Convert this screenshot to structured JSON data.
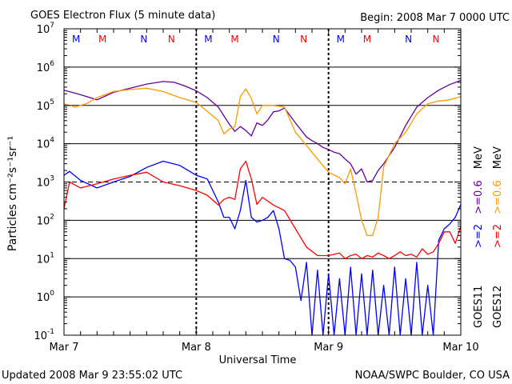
{
  "chart_data": {
    "type": "line",
    "title": "GOES Electron Flux (5 minute data)",
    "begin_text": "Begin: 2008 Mar 7 0000 UTC",
    "xlabel": "Universal Time",
    "ylabel": "Particles cm⁻²s⁻¹sr⁻¹",
    "yscale": "log",
    "ylim_exp": [
      -1,
      7
    ],
    "y_ticks": [
      {
        "exp": -1,
        "label": "10",
        "sup": "-1"
      },
      {
        "exp": 0,
        "label": "10",
        "sup": "0"
      },
      {
        "exp": 1,
        "label": "10",
        "sup": "1"
      },
      {
        "exp": 2,
        "label": "10",
        "sup": "2"
      },
      {
        "exp": 3,
        "label": "10",
        "sup": "3"
      },
      {
        "exp": 4,
        "label": "10",
        "sup": "4"
      },
      {
        "exp": 5,
        "label": "10",
        "sup": "5"
      },
      {
        "exp": 6,
        "label": "10",
        "sup": "6"
      },
      {
        "exp": 7,
        "label": "10",
        "sup": "7"
      }
    ],
    "xlim_hours": [
      0,
      72
    ],
    "x_ticks": [
      {
        "hour": 0,
        "label": "Mar 7"
      },
      {
        "hour": 24,
        "label": "Mar 8"
      },
      {
        "hour": 48,
        "label": "Mar 9"
      },
      {
        "hour": 72,
        "label": "Mar 10"
      }
    ],
    "threshold_exp": 3,
    "grid": "horizontal decades",
    "mn_markers": [
      {
        "hour": 2.2,
        "text": "M",
        "color": "#0000ff"
      },
      {
        "hour": 7.0,
        "text": "M",
        "color": "#ff0000"
      },
      {
        "hour": 14.5,
        "text": "N",
        "color": "#0000ff"
      },
      {
        "hour": 19.5,
        "text": "N",
        "color": "#ff0000"
      },
      {
        "hour": 26.2,
        "text": "M",
        "color": "#0000ff"
      },
      {
        "hour": 31.0,
        "text": "M",
        "color": "#ff0000"
      },
      {
        "hour": 38.5,
        "text": "N",
        "color": "#0000ff"
      },
      {
        "hour": 43.5,
        "text": "N",
        "color": "#ff0000"
      },
      {
        "hour": 50.2,
        "text": "M",
        "color": "#0000ff"
      },
      {
        "hour": 55.0,
        "text": "M",
        "color": "#ff0000"
      },
      {
        "hour": 62.5,
        "text": "N",
        "color": "#0000ff"
      },
      {
        "hour": 67.5,
        "text": "N",
        "color": "#ff0000"
      }
    ],
    "legend": {
      "goes11": "GOES11",
      "goes12": "GOES12",
      "ge2": ">=2",
      "ge06": ">=0.6",
      "mev": "MeV"
    },
    "series": [
      {
        "name": "GOES11 >=0.6 MeV",
        "color": "#660099",
        "x": [
          0,
          3,
          6,
          9,
          12,
          15,
          18,
          20,
          22,
          24,
          26,
          28,
          30,
          31,
          32,
          33,
          34,
          35,
          36,
          37,
          38,
          39,
          40,
          42,
          44,
          45,
          46,
          47,
          48,
          49,
          50,
          51,
          52,
          53,
          54,
          55,
          56,
          57,
          58,
          60,
          62,
          64,
          66,
          68,
          70,
          72
        ],
        "y": [
          250000.0,
          190000.0,
          140000.0,
          220000.0,
          280000.0,
          360000.0,
          420000.0,
          400000.0,
          320000.0,
          240000.0,
          160000.0,
          90000.0,
          32000.0,
          21000.0,
          28000.0,
          22000.0,
          16000.0,
          35000.0,
          30000.0,
          42000.0,
          68000.0,
          72000.0,
          85000.0,
          35000.0,
          15000.0,
          12000.0,
          10000.0,
          8000.0,
          7000.0,
          6000.0,
          5500.0,
          4000.0,
          3000.0,
          1600.0,
          2200.0,
          1000.0,
          1100.0,
          2000.0,
          3000.0,
          8000.0,
          30000.0,
          90000.0,
          160000.0,
          250000.0,
          350000.0,
          450000.0
        ]
      },
      {
        "name": "GOES12 >=0.6 MeV",
        "color": "#ff9900",
        "x": [
          0,
          2,
          4,
          6,
          9,
          12,
          15,
          18,
          21,
          24,
          26,
          28,
          29,
          30,
          31,
          32,
          33,
          34,
          35,
          36,
          38,
          40,
          42,
          44,
          46,
          48,
          50,
          51,
          52,
          53,
          54,
          55,
          56,
          57,
          58,
          60,
          62,
          64,
          66,
          68,
          70,
          72
        ],
        "y": [
          110000.0,
          90000.0,
          110000.0,
          160000.0,
          230000.0,
          260000.0,
          280000.0,
          230000.0,
          160000.0,
          120000.0,
          70000.0,
          40000.0,
          18000.0,
          24000.0,
          28000.0,
          170000.0,
          270000.0,
          150000.0,
          60000.0,
          100000.0,
          100000.0,
          90000.0,
          20000.0,
          9000.0,
          4000.0,
          1800.0,
          1300.0,
          900.0,
          2200.0,
          500.0,
          100.0,
          40.0,
          40.0,
          120.0,
          2500.0,
          10000.0,
          20000.0,
          60000.0,
          110000.0,
          130000.0,
          140000.0,
          170000.0
        ]
      },
      {
        "name": "GOES11 >=2 MeV",
        "color": "#0000ff",
        "x": [
          0,
          1,
          3,
          6,
          9,
          12,
          15,
          18,
          21,
          24,
          26,
          27,
          28,
          29,
          30,
          31,
          32,
          33,
          34,
          35,
          36,
          37,
          38,
          39,
          40,
          41,
          42,
          43,
          44,
          45,
          46,
          47,
          48,
          49,
          50,
          51,
          52,
          53,
          54,
          55,
          56,
          57,
          58,
          59,
          60,
          61,
          62,
          63,
          64,
          65,
          66,
          67,
          68,
          69,
          70,
          71,
          72
        ],
        "y": [
          1500.0,
          1900.0,
          1100.0,
          700.0,
          1000.0,
          1400.0,
          2400.0,
          3500.0,
          2700.0,
          1500.0,
          1200.0,
          600.0,
          300.0,
          120.0,
          120.0,
          60.0,
          180.0,
          1100.0,
          120.0,
          90.0,
          100.0,
          120.0,
          180.0,
          60.0,
          10.0,
          9.0,
          6.0,
          0.8,
          8.0,
          0.1,
          5.0,
          0.1,
          4.0,
          0.1,
          3.0,
          0.1,
          6.0,
          0.1,
          4.0,
          0.1,
          5.0,
          0.1,
          2.0,
          0.1,
          6.0,
          0.1,
          3.0,
          0.1,
          8.0,
          0.1,
          2.0,
          0.1,
          30.0,
          60.0,
          80.0,
          120.0,
          260.0
        ]
      },
      {
        "name": "GOES12 >=2 MeV",
        "color": "#ff0000",
        "x": [
          0,
          1,
          3,
          6,
          9,
          12,
          15,
          18,
          21,
          24,
          26,
          28,
          29,
          30,
          31,
          32,
          33,
          34,
          35,
          36,
          38,
          40,
          42,
          44,
          46,
          48,
          50,
          51,
          52,
          53,
          54,
          55,
          56,
          57,
          58,
          59,
          60,
          61,
          62,
          63,
          64,
          65,
          66,
          67,
          68,
          69,
          70,
          71,
          72
        ],
        "y": [
          200.0,
          1000.0,
          700.0,
          900.0,
          1200.0,
          1500.0,
          1800.0,
          1000.0,
          800.0,
          600.0,
          450.0,
          250.0,
          350.0,
          400.0,
          350.0,
          2200.0,
          3500.0,
          1200.0,
          260.0,
          400.0,
          250.0,
          180.0,
          60.0,
          20.0,
          12.0,
          12.0,
          14.0,
          10.0,
          12.0,
          13.0,
          10.0,
          12.0,
          11.0,
          14.0,
          12.0,
          10.0,
          12.0,
          15.0,
          12.0,
          13.0,
          11.0,
          18.0,
          13.0,
          15.0,
          25.0,
          50.0,
          50.0,
          25.0,
          70.0
        ]
      }
    ]
  },
  "footer": {
    "updated": "Updated 2008 Mar  9 23:55:02 UTC",
    "credit": "NOAA/SWPC Boulder, CO USA"
  }
}
